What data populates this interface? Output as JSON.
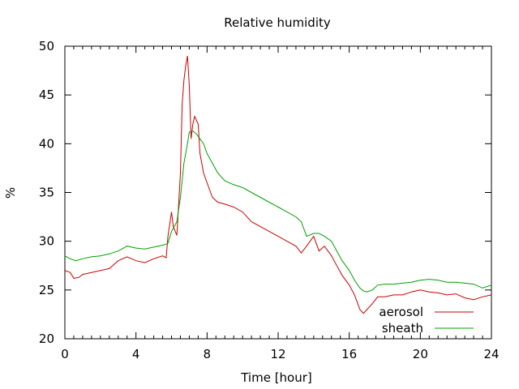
{
  "chart_data": {
    "type": "line",
    "title": "Relative humidity",
    "xlabel": "Time [hour]",
    "ylabel": "%",
    "xlim": [
      0,
      24
    ],
    "ylim": [
      20,
      50
    ],
    "xticks": [
      0,
      4,
      8,
      12,
      16,
      20,
      24
    ],
    "yticks": [
      20,
      25,
      30,
      35,
      40,
      45,
      50
    ],
    "grid": false,
    "legend_position": "bottom-right",
    "series": [
      {
        "name": "aerosol",
        "color": "#cc0000",
        "x": [
          0.0,
          0.3,
          0.5,
          0.8,
          1.0,
          1.5,
          2.0,
          2.5,
          3.0,
          3.5,
          4.0,
          4.5,
          5.0,
          5.5,
          5.7,
          5.8,
          6.0,
          6.1,
          6.3,
          6.5,
          6.6,
          6.7,
          6.8,
          6.9,
          7.0,
          7.1,
          7.2,
          7.3,
          7.5,
          7.6,
          7.8,
          8.0,
          8.3,
          8.6,
          9.0,
          9.5,
          10.0,
          10.5,
          11.0,
          11.5,
          12.0,
          12.5,
          13.0,
          13.3,
          13.6,
          14.0,
          14.3,
          14.6,
          15.0,
          15.3,
          15.6,
          16.0,
          16.3,
          16.6,
          16.8,
          17.0,
          17.3,
          17.6,
          18.0,
          18.5,
          19.0,
          19.5,
          20.0,
          20.5,
          21.0,
          21.5,
          22.0,
          22.5,
          23.0,
          23.5,
          24.0
        ],
        "y": [
          27.0,
          26.8,
          26.2,
          26.3,
          26.6,
          26.8,
          27.0,
          27.2,
          28.0,
          28.4,
          28.0,
          27.8,
          28.2,
          28.5,
          28.3,
          30.5,
          33.0,
          31.5,
          30.6,
          37.0,
          44.0,
          46.5,
          48.0,
          49.0,
          46.0,
          40.5,
          42.0,
          42.8,
          42.0,
          39.0,
          37.0,
          36.0,
          34.5,
          34.0,
          33.8,
          33.5,
          33.0,
          32.0,
          31.5,
          31.0,
          30.5,
          30.0,
          29.5,
          28.8,
          29.5,
          30.5,
          29.0,
          29.5,
          28.5,
          27.5,
          26.5,
          25.5,
          24.5,
          23.0,
          22.6,
          23.0,
          23.6,
          24.3,
          24.3,
          24.5,
          24.5,
          24.8,
          25.0,
          24.8,
          24.7,
          24.5,
          24.6,
          24.2,
          24.0,
          24.3,
          24.5
        ]
      },
      {
        "name": "sheath",
        "color": "#00a000",
        "x": [
          0.0,
          0.3,
          0.6,
          1.0,
          1.5,
          2.0,
          2.5,
          3.0,
          3.5,
          4.0,
          4.5,
          5.0,
          5.5,
          5.7,
          5.8,
          6.0,
          6.3,
          6.5,
          6.7,
          6.9,
          7.0,
          7.2,
          7.4,
          7.6,
          7.8,
          8.0,
          8.3,
          8.6,
          9.0,
          9.5,
          10.0,
          10.5,
          11.0,
          11.5,
          12.0,
          12.5,
          13.0,
          13.3,
          13.6,
          14.0,
          14.3,
          14.6,
          15.0,
          15.3,
          15.6,
          16.0,
          16.3,
          16.6,
          16.8,
          17.0,
          17.3,
          17.6,
          18.0,
          18.5,
          19.0,
          19.5,
          20.0,
          20.5,
          21.0,
          21.5,
          22.0,
          22.5,
          23.0,
          23.5,
          24.0
        ],
        "y": [
          28.5,
          28.2,
          28.0,
          28.2,
          28.4,
          28.5,
          28.7,
          29.0,
          29.5,
          29.3,
          29.2,
          29.4,
          29.6,
          29.7,
          29.8,
          31.0,
          32.0,
          34.5,
          38.0,
          40.0,
          41.2,
          41.3,
          41.0,
          40.5,
          40.0,
          39.0,
          38.0,
          37.0,
          36.2,
          35.8,
          35.5,
          35.0,
          34.5,
          34.0,
          33.5,
          33.0,
          32.5,
          32.0,
          30.5,
          30.8,
          30.8,
          30.5,
          30.0,
          29.0,
          28.0,
          27.0,
          26.0,
          25.2,
          24.9,
          24.8,
          25.0,
          25.5,
          25.6,
          25.6,
          25.7,
          25.8,
          26.0,
          26.1,
          26.0,
          25.8,
          25.8,
          25.7,
          25.6,
          25.2,
          25.5
        ]
      }
    ]
  }
}
